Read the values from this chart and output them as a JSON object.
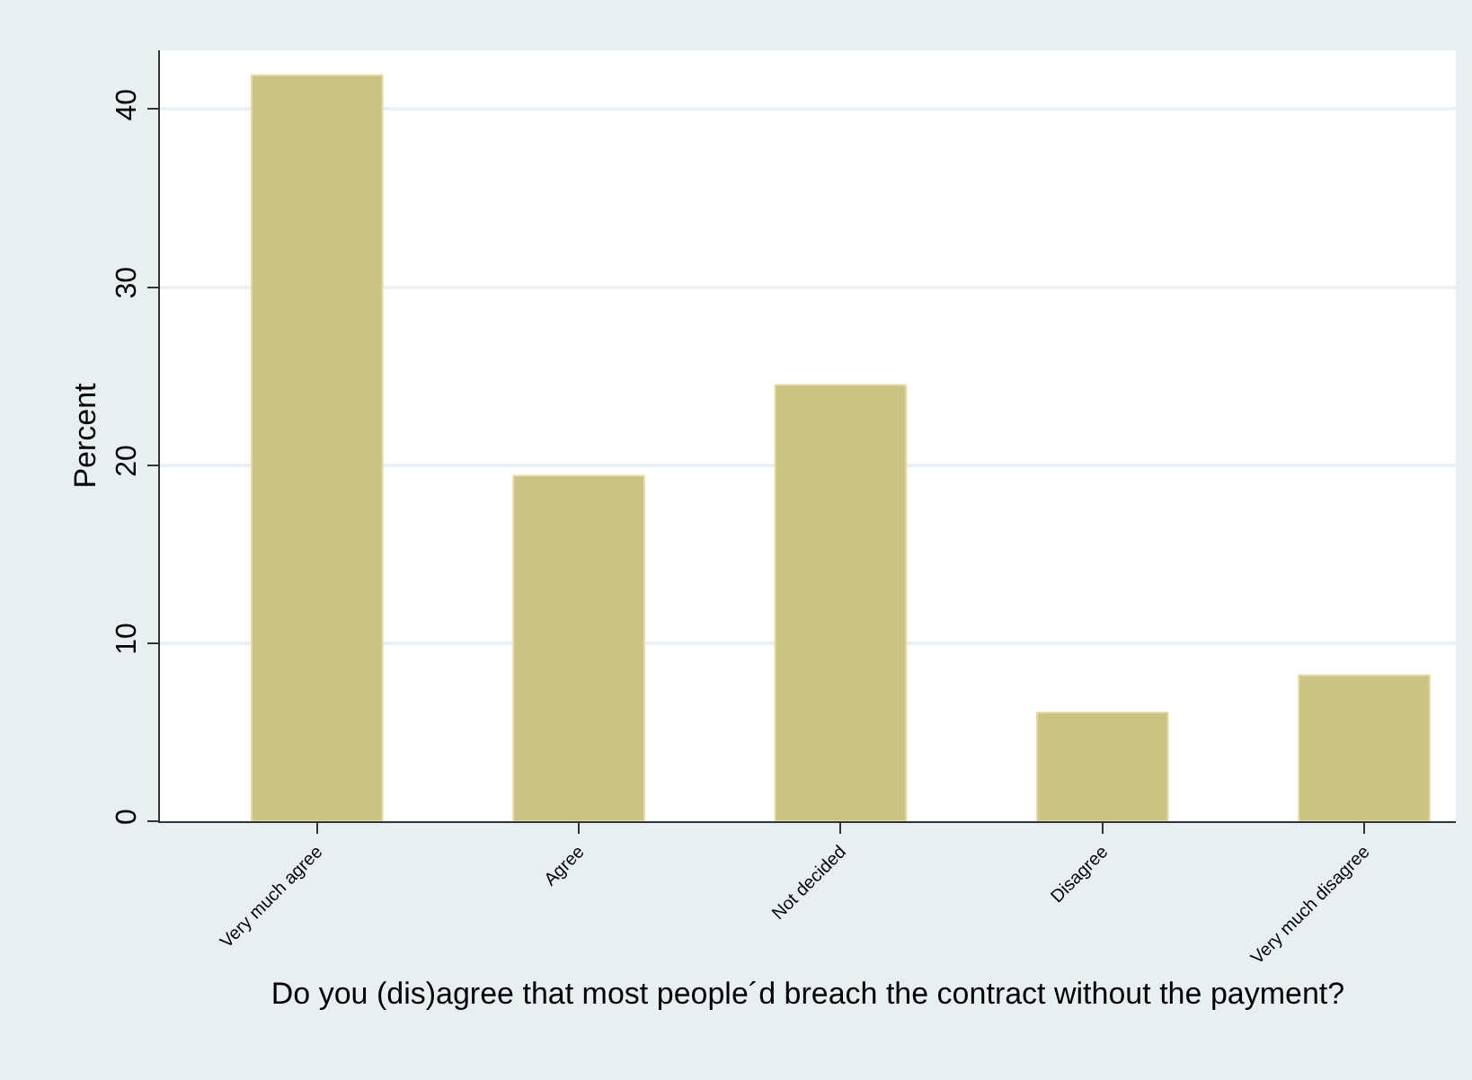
{
  "chart_data": {
    "type": "bar",
    "xlabel": "Do you (dis)agree that most people´d breach the contract without the payment?",
    "ylabel": "Percent",
    "categories": [
      "Very much agree",
      "Agree",
      "Not decided",
      "Disagree",
      "Very much disagree"
    ],
    "values": [
      41.9,
      19.4,
      24.5,
      6.1,
      8.2
    ],
    "color": "#cbc383",
    "ylim": [
      0,
      43.3
    ],
    "yticks": [
      0,
      10,
      20,
      30,
      40
    ],
    "grid": "y",
    "legend": false
  }
}
